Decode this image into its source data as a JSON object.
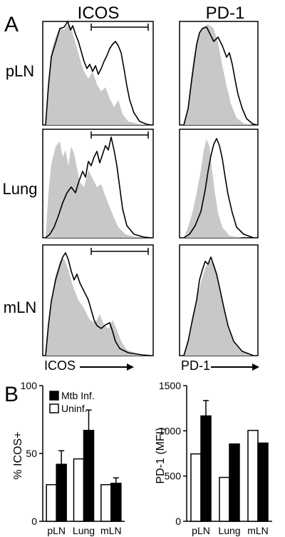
{
  "panel_labels": {
    "a": "A",
    "b": "B"
  },
  "columns": {
    "icos": "ICOS",
    "pd1": "PD-1"
  },
  "rows": [
    "pLN",
    "Lung",
    "mLN"
  ],
  "histogram_axis_labels": {
    "icos": "ICOS",
    "pd1": "PD-1"
  },
  "colors": {
    "filled_histogram": "#c8c8c8",
    "outline_histogram": "#000000",
    "bar_infected": "#000000",
    "bar_uninfected": "#ffffff"
  },
  "chart_data": [
    {
      "type": "bar",
      "title": "",
      "xlabel": "",
      "ylabel": "% ICOS+",
      "categories": [
        "pLN",
        "Lung",
        "mLN"
      ],
      "ylim": [
        0,
        100
      ],
      "yticks": [
        0,
        50,
        100
      ],
      "legend_position": "top-left",
      "series": [
        {
          "name": "Uninf.",
          "fill": "white",
          "values": [
            27,
            46,
            27
          ]
        },
        {
          "name": "Mtb Inf.",
          "fill": "black",
          "values": [
            42,
            67,
            28
          ],
          "errors": [
            10,
            15,
            4
          ]
        }
      ]
    },
    {
      "type": "bar",
      "title": "",
      "xlabel": "",
      "ylabel": "PD-1 (MFI)",
      "categories": [
        "pLN",
        "Lung",
        "mLN"
      ],
      "ylim": [
        0,
        1500
      ],
      "yticks": [
        0,
        500,
        1000,
        1500
      ],
      "series": [
        {
          "name": "Uninf.",
          "fill": "white",
          "values": [
            745,
            485,
            1005
          ]
        },
        {
          "name": "Mtb Inf.",
          "fill": "black",
          "values": [
            1165,
            855,
            865
          ],
          "errors": [
            170,
            0,
            0
          ]
        }
      ]
    }
  ]
}
